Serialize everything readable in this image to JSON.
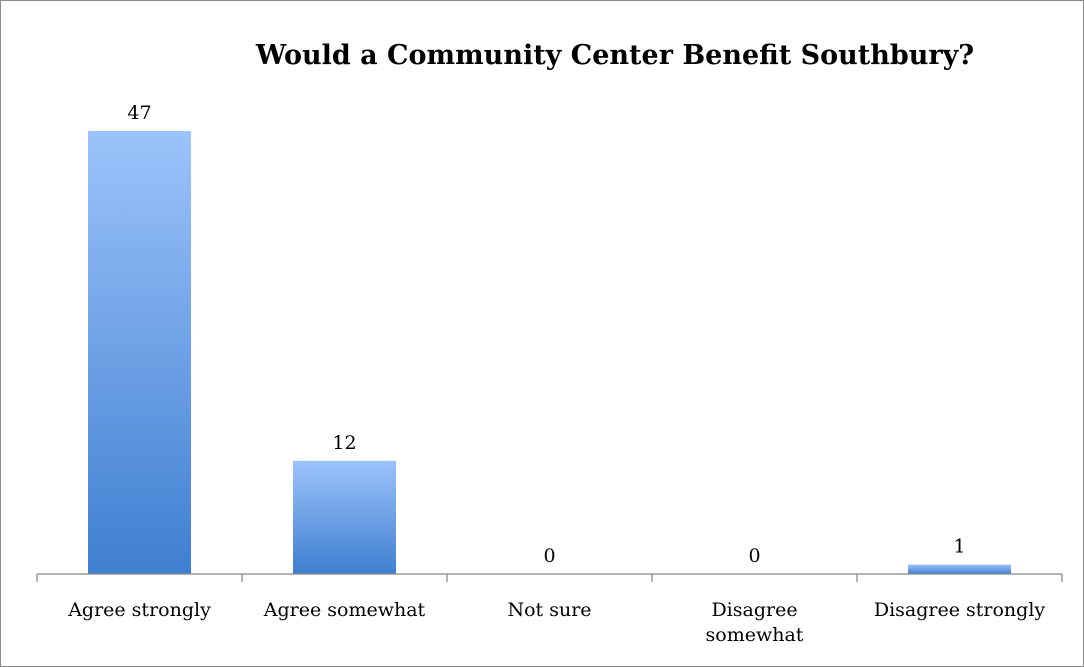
{
  "chart_data": {
    "type": "bar",
    "title": "Would a Community Center Benefit Southbury?",
    "xlabel": "",
    "ylabel": "",
    "categories": [
      [
        "Agree strongly"
      ],
      [
        "Agree somewhat"
      ],
      [
        "Not sure"
      ],
      [
        "Disagree",
        "somewhat"
      ],
      [
        "Disagree strongly"
      ]
    ],
    "values": [
      47,
      12,
      0,
      0,
      1
    ],
    "ylim": [
      0,
      47
    ],
    "grid": false,
    "legend": "none",
    "colors": {
      "bar_top": "#9cc3fb",
      "bar_bottom": "#3f7fd0",
      "axis": "#868686",
      "frame": "#8c8c8c"
    }
  }
}
